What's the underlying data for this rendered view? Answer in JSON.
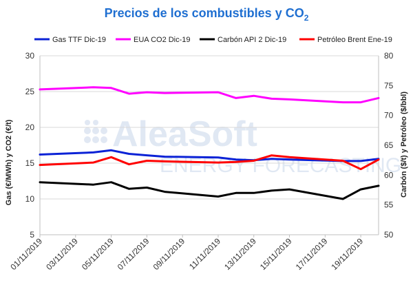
{
  "chart_data": {
    "type": "line",
    "title": "Precios de los combustibles y CO",
    "title_sub": "2",
    "ylabel_left": "Gas (€/MWh) y CO2 (€/t)",
    "ylabel_right": "Carbón ($/t) y Petróleo ($/bbl)",
    "ylim_left": [
      5,
      30
    ],
    "ylim_right": [
      50,
      80
    ],
    "yticks_left": [
      "5",
      "10",
      "15",
      "20",
      "25",
      "30"
    ],
    "yticks_right": [
      "50",
      "55",
      "60",
      "65",
      "70",
      "75",
      "80"
    ],
    "xticks": [
      "01/11/2019",
      "03/11/2019",
      "05/11/2019",
      "07/11/2019",
      "09/11/2019",
      "11/11/2019",
      "13/11/2019",
      "15/11/2019",
      "17/11/2019",
      "19/11/2019"
    ],
    "grid": true,
    "legend_position": "top",
    "x": [
      "01/11/2019",
      "04/11/2019",
      "05/11/2019",
      "06/11/2019",
      "07/11/2019",
      "08/11/2019",
      "11/11/2019",
      "12/11/2019",
      "13/11/2019",
      "14/11/2019",
      "15/11/2019",
      "18/11/2019",
      "19/11/2019",
      "20/11/2019"
    ],
    "series": [
      {
        "name": "Gas TTF Dic-19",
        "axis": "left",
        "color": "#0b22d6",
        "values": [
          16.2,
          16.5,
          16.8,
          16.3,
          16.1,
          15.9,
          15.8,
          15.5,
          15.4,
          15.6,
          15.5,
          15.3,
          15.3,
          15.6
        ]
      },
      {
        "name": "EUA CO2 Dic-19",
        "axis": "left",
        "color": "#ff00ff",
        "values": [
          25.3,
          25.6,
          25.5,
          24.7,
          24.9,
          24.8,
          24.9,
          24.1,
          24.4,
          24.0,
          23.9,
          23.5,
          23.5,
          24.1
        ]
      },
      {
        "name": "Carbón API 2 Dic-19",
        "axis": "right",
        "color": "#000000",
        "values": [
          58.8,
          58.4,
          58.8,
          57.7,
          57.9,
          57.2,
          56.4,
          57.0,
          57.0,
          57.4,
          57.6,
          56.0,
          57.6,
          58.2
        ]
      },
      {
        "name": "Petróleo Brent Ene-19",
        "axis": "right",
        "color": "#ff0000",
        "values": [
          61.7,
          62.1,
          63.0,
          61.8,
          62.4,
          62.3,
          62.1,
          62.2,
          62.4,
          63.3,
          63.0,
          62.4,
          61.0,
          62.6
        ]
      }
    ]
  },
  "watermark": {
    "brand": "AleaSoft",
    "tagline": "ENERGY FORECASTING"
  }
}
